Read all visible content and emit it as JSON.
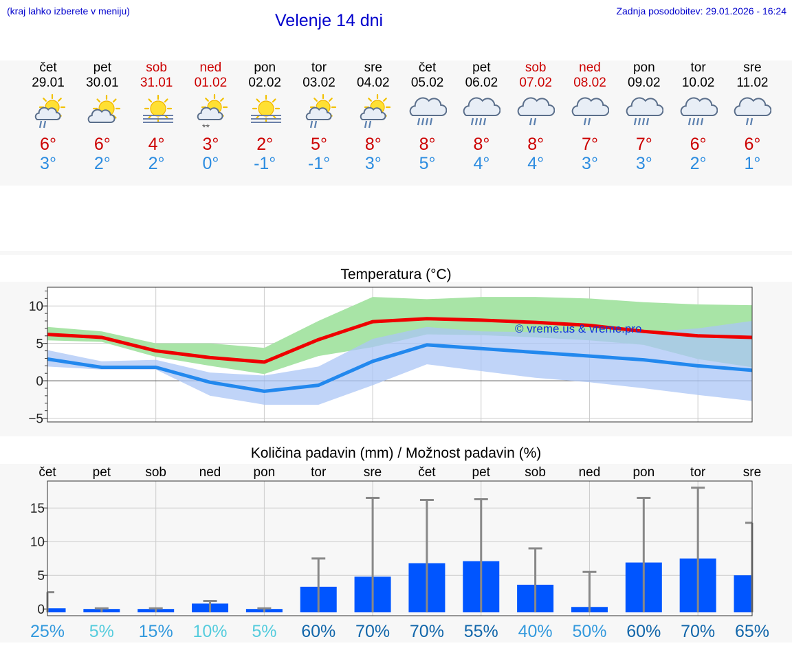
{
  "header": {
    "location_hint": "(kraj lahko izberete v meniju)",
    "title": "Velenje 14 dni",
    "last_update": "Zadnja posodobitev: 29.01.2026 - 16:24"
  },
  "colors": {
    "link": "#0000cc",
    "tmax": "#cc0000",
    "tmin": "#2c8ce0",
    "weekend": "#cc0000",
    "bar": "#0055ff"
  },
  "days": [
    {
      "name": "čet",
      "date": "29.01",
      "weekend": false,
      "icon": "sun-cloud-rain-icon",
      "tmax": "6°",
      "tmin": "3°"
    },
    {
      "name": "pet",
      "date": "30.01",
      "weekend": false,
      "icon": "sun-cloud-icon",
      "tmax": "6°",
      "tmin": "2°"
    },
    {
      "name": "sob",
      "date": "31.01",
      "weekend": true,
      "icon": "sun-fog-icon",
      "tmax": "4°",
      "tmin": "2°"
    },
    {
      "name": "ned",
      "date": "01.02",
      "weekend": true,
      "icon": "sun-cloud-snow-icon",
      "tmax": "3°",
      "tmin": "0°"
    },
    {
      "name": "pon",
      "date": "02.02",
      "weekend": false,
      "icon": "sun-fog-icon",
      "tmax": "2°",
      "tmin": "-1°"
    },
    {
      "name": "tor",
      "date": "03.02",
      "weekend": false,
      "icon": "sun-cloud-rain-icon",
      "tmax": "5°",
      "tmin": "-1°"
    },
    {
      "name": "sre",
      "date": "04.02",
      "weekend": false,
      "icon": "sun-cloud-rain-icon",
      "tmax": "8°",
      "tmin": "3°"
    },
    {
      "name": "čet",
      "date": "05.02",
      "weekend": false,
      "icon": "cloud-heavy-rain-icon",
      "tmax": "8°",
      "tmin": "5°"
    },
    {
      "name": "pet",
      "date": "06.02",
      "weekend": false,
      "icon": "cloud-heavy-rain-icon",
      "tmax": "8°",
      "tmin": "4°"
    },
    {
      "name": "sob",
      "date": "07.02",
      "weekend": true,
      "icon": "cloud-rain-icon",
      "tmax": "8°",
      "tmin": "4°"
    },
    {
      "name": "ned",
      "date": "08.02",
      "weekend": true,
      "icon": "cloud-rain-icon",
      "tmax": "7°",
      "tmin": "3°"
    },
    {
      "name": "pon",
      "date": "09.02",
      "weekend": false,
      "icon": "cloud-heavy-rain-icon",
      "tmax": "7°",
      "tmin": "3°"
    },
    {
      "name": "tor",
      "date": "10.02",
      "weekend": false,
      "icon": "cloud-heavy-rain-icon",
      "tmax": "6°",
      "tmin": "2°"
    },
    {
      "name": "sre",
      "date": "11.02",
      "weekend": false,
      "icon": "cloud-rain-icon",
      "tmax": "6°",
      "tmin": "1°"
    }
  ],
  "chart_data": [
    {
      "type": "line",
      "title": "Temperatura (°C)",
      "watermark": "© vreme.us & vreme.pro",
      "xlabel": "",
      "ylabel": "",
      "ylim": [
        -5.5,
        12.5
      ],
      "yticks": [
        -5,
        0,
        5,
        10
      ],
      "ytick_labels": [
        "−5",
        "0",
        "5",
        "10"
      ],
      "x": [
        0,
        1,
        2,
        3,
        4,
        5,
        6,
        7,
        8,
        9,
        10,
        11,
        12,
        13
      ],
      "series": [
        {
          "name": "Tmax",
          "color": "#ee0000",
          "values": [
            6.2,
            5.8,
            4.0,
            3.1,
            2.5,
            5.5,
            7.9,
            8.3,
            8.1,
            7.8,
            7.4,
            6.6,
            6.0,
            5.8
          ]
        },
        {
          "name": "Tmin",
          "color": "#2288ee",
          "values": [
            2.9,
            1.8,
            1.8,
            -0.2,
            -1.4,
            -0.6,
            2.6,
            4.8,
            4.3,
            3.8,
            3.3,
            2.8,
            2.0,
            1.4
          ]
        }
      ],
      "bands": [
        {
          "name": "Tmax range",
          "color": "#a8e4a6",
          "upper": [
            7.2,
            6.6,
            5.0,
            5.0,
            4.4,
            8.0,
            11.2,
            10.9,
            11.2,
            11.2,
            11.0,
            10.5,
            10.2,
            10.1
          ],
          "lower": [
            5.4,
            5.2,
            3.2,
            2.0,
            0.9,
            3.3,
            4.5,
            6.2,
            6.1,
            5.8,
            5.4,
            4.8,
            2.9,
            1.8
          ]
        },
        {
          "name": "Tmin range",
          "color": "#abc6f5",
          "upper": [
            4.1,
            2.6,
            2.8,
            1.1,
            0.7,
            1.9,
            5.6,
            7.2,
            6.6,
            6.5,
            6.7,
            6.5,
            7.0,
            8.0
          ],
          "lower": [
            1.9,
            1.5,
            1.5,
            -2.0,
            -3.2,
            -3.2,
            -0.6,
            2.2,
            1.3,
            0.4,
            -0.2,
            -1.0,
            -1.9,
            -2.7
          ]
        }
      ]
    },
    {
      "type": "bar",
      "title": "Količina padavin (mm) / Možnost padavin (%)",
      "categories": [
        "čet",
        "pet",
        "sob",
        "ned",
        "pon",
        "tor",
        "sre",
        "čet",
        "pet",
        "sob",
        "ned",
        "pon",
        "tor",
        "sre"
      ],
      "values": [
        0.1,
        0.0,
        0.0,
        0.8,
        0.0,
        3.3,
        4.8,
        6.8,
        7.1,
        3.6,
        0.3,
        6.9,
        7.5,
        5.0
      ],
      "error_max": [
        2.5,
        0.1,
        0.1,
        1.2,
        0.1,
        7.5,
        16.5,
        16.2,
        16.3,
        9.0,
        5.5,
        16.5,
        18.0,
        12.8
      ],
      "probability": [
        "25%",
        "5%",
        "15%",
        "10%",
        "5%",
        "60%",
        "70%",
        "70%",
        "55%",
        "40%",
        "50%",
        "60%",
        "70%",
        "65%"
      ],
      "probability_colors": [
        "#3399dd",
        "#55ccdd",
        "#3399dd",
        "#55ccdd",
        "#55ccdd",
        "#1166aa",
        "#1166aa",
        "#1166aa",
        "#1166aa",
        "#3399dd",
        "#3399dd",
        "#1166aa",
        "#1166aa",
        "#1166aa"
      ],
      "ylim": [
        -1,
        19
      ],
      "yticks": [
        0,
        5,
        10,
        15
      ],
      "ytick_labels": [
        "0",
        "5",
        "10",
        "15"
      ],
      "xlabel": "",
      "ylabel": ""
    }
  ]
}
